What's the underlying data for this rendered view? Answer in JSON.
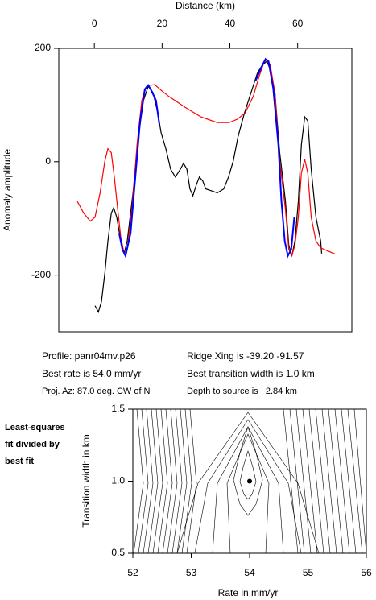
{
  "chart_data": [
    {
      "type": "line",
      "x_label": "Distance (km)",
      "y_label": "Anomaly amplitude",
      "xlim": [
        -10.5,
        76
      ],
      "xticks": [
        0,
        20,
        40,
        60
      ],
      "ylim": [
        -300,
        200
      ],
      "yticks": [
        200,
        0,
        -200
      ],
      "series": [
        {
          "color": "#000000",
          "x": [
            0.2,
            1.2,
            2.1,
            3.1,
            4.0,
            5.0,
            5.7,
            6.6,
            7.8,
            8.8,
            9.7,
            11.4,
            13.0,
            14.5,
            15.9,
            17.3,
            18.7,
            19.7,
            21.1,
            22.5,
            23.9,
            25.4,
            26.3,
            27.3,
            28.2,
            29.1,
            30.1,
            31.0,
            32.0,
            32.9,
            34.4,
            36.3,
            38.2,
            39.6,
            41.0,
            42.4,
            44.3,
            46.2,
            48.1,
            49.5,
            50.9,
            51.9,
            53.3,
            54.7,
            56.4,
            57.4,
            58.3,
            59.2,
            60.2,
            61.1,
            62.1,
            63.0,
            64.0,
            65.4,
            66.8,
            67.1
          ],
          "values": [
            -254,
            -265,
            -247,
            -197,
            -140,
            -91,
            -81,
            -98,
            -140,
            -162,
            -140,
            -55,
            44,
            108,
            133,
            122,
            87,
            51,
            23,
            -13,
            -27,
            -13,
            -3,
            -13,
            -48,
            -60,
            -41,
            -27,
            -34,
            -48,
            -51,
            -55,
            -48,
            -27,
            1,
            44,
            86,
            121,
            156,
            170,
            177,
            163,
            121,
            16,
            -69,
            -147,
            -166,
            -140,
            -70,
            30,
            79,
            72,
            -13,
            -98,
            -140,
            -162
          ]
        },
        {
          "color": "#ff0000",
          "x": [
            -5.0,
            -3.1,
            -1.2,
            0.2,
            1.7,
            3.1,
            4.0,
            5.0,
            5.9,
            6.9,
            7.8,
            8.8,
            9.7,
            11.1,
            12.6,
            14.0,
            15.4,
            16.4,
            17.8,
            19.7,
            22.0,
            26.8,
            31.5,
            36.3,
            39.8,
            42.2,
            44.5,
            46.9,
            48.6,
            50.0,
            50.9,
            51.9,
            53.3,
            54.7,
            56.4,
            57.4,
            58.3,
            59.2,
            60.2,
            61.1,
            62.1,
            63.0,
            64.0,
            65.4,
            66.8,
            68.7,
            71.1
          ],
          "values": [
            -70,
            -91,
            -105,
            -98,
            -55,
            1,
            23,
            16,
            -27,
            -84,
            -133,
            -162,
            -155,
            -84,
            30,
            108,
            133,
            135,
            136,
            126,
            115,
            96,
            79,
            69,
            69,
            75,
            86,
            115,
            150,
            174,
            181,
            171,
            121,
            1,
            -84,
            -155,
            -166,
            -147,
            -98,
            -20,
            4,
            -20,
            -98,
            -140,
            -152,
            -157,
            -163
          ]
        },
        {
          "color": "#0000ff",
          "x": [
            7.3,
            8.3,
            9.2,
            10.7,
            12.1,
            13.5,
            14.9,
            15.9,
            16.8,
            18.2,
            19.2,
            null,
            47.6,
            49.1,
            50.5,
            51.4,
            52.8,
            54.3,
            55.2,
            56.2,
            57.1,
            58.1,
            59.0
          ],
          "values": [
            -126,
            -155,
            -166,
            -126,
            -27,
            72,
            128,
            135,
            126,
            108,
            65,
            null,
            143,
            164,
            181,
            177,
            129,
            30,
            -69,
            -140,
            -166,
            -155,
            -98
          ]
        }
      ],
      "annotations": [
        "Profile: panr04mv.p26",
        "Ridge Xing is -39.20 -91.57",
        "Best rate is 54.0 mm/yr",
        "Best transition width is 1.0 km",
        "Proj. Az: 87.0 deg. CW of N",
        "Depth to source is   2.84 km"
      ]
    },
    {
      "type": "contour",
      "title_lines": [
        "Least-squares",
        "fit divided by",
        "best fit"
      ],
      "x_label": "Rate in mm/yr",
      "y_label": "Transition width in km",
      "xlim": [
        52,
        56
      ],
      "xticks": [
        52,
        53,
        54,
        55,
        56
      ],
      "ylim": [
        0.5,
        1.5
      ],
      "yticks": [
        0.5,
        {
          "value": 1.0,
          "label": "1.0"
        },
        1.5
      ],
      "x": [
        54.0
      ],
      "values": [
        1.0
      ],
      "color": "#000000"
    }
  ]
}
